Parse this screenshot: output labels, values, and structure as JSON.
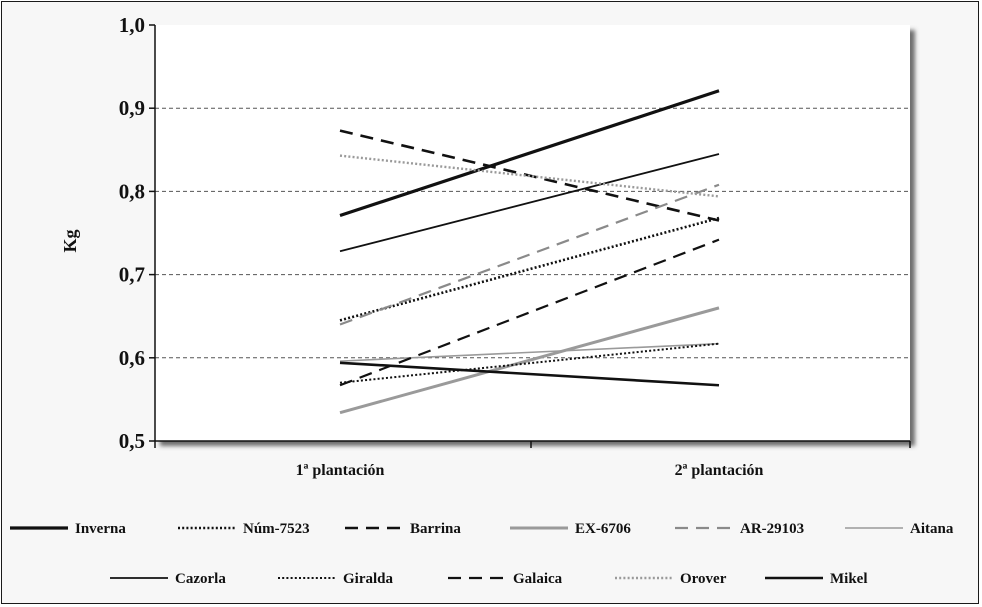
{
  "chart_data": {
    "type": "line",
    "ylabel": "Kg",
    "ylim": [
      0.5,
      1.0
    ],
    "yticks": [
      "0,5",
      "0,6",
      "0,7",
      "0,8",
      "0,9",
      "1,0"
    ],
    "categories": [
      "1ª plantación",
      "2ª plantación"
    ],
    "grid": "dashed horizontal",
    "legend_position": "bottom",
    "series": [
      {
        "name": "Inverna",
        "values": [
          0.771,
          0.921
        ],
        "color": "#111111",
        "dash": "solid",
        "width": 3.2
      },
      {
        "name": "Núm-7523",
        "values": [
          0.645,
          0.768
        ],
        "color": "#111111",
        "dash": "dotted",
        "width": 2.6
      },
      {
        "name": "Barrina",
        "values": [
          0.873,
          0.765
        ],
        "color": "#111111",
        "dash": "dashed",
        "width": 2.6
      },
      {
        "name": "EX-6706",
        "values": [
          0.534,
          0.66
        ],
        "color": "#9a9a9a",
        "dash": "solid",
        "width": 3.0
      },
      {
        "name": "AR-29103",
        "values": [
          0.64,
          0.808
        ],
        "color": "#8a8a8a",
        "dash": "dashed",
        "width": 2.2
      },
      {
        "name": "Aitana",
        "values": [
          0.596,
          0.617
        ],
        "color": "#9a9a9a",
        "dash": "solid",
        "width": 1.6
      },
      {
        "name": "Cazorla",
        "values": [
          0.728,
          0.845
        ],
        "color": "#111111",
        "dash": "solid",
        "width": 1.8
      },
      {
        "name": "Giralda",
        "values": [
          0.57,
          0.617
        ],
        "color": "#111111",
        "dash": "dotted",
        "width": 2.0
      },
      {
        "name": "Galaica",
        "values": [
          0.567,
          0.742
        ],
        "color": "#111111",
        "dash": "dashed",
        "width": 2.2
      },
      {
        "name": "Orover",
        "values": [
          0.843,
          0.794
        ],
        "color": "#9a9a9a",
        "dash": "dotted",
        "width": 2.4
      },
      {
        "name": "Mikel",
        "values": [
          0.594,
          0.567
        ],
        "color": "#111111",
        "dash": "solid",
        "width": 2.6
      }
    ]
  }
}
